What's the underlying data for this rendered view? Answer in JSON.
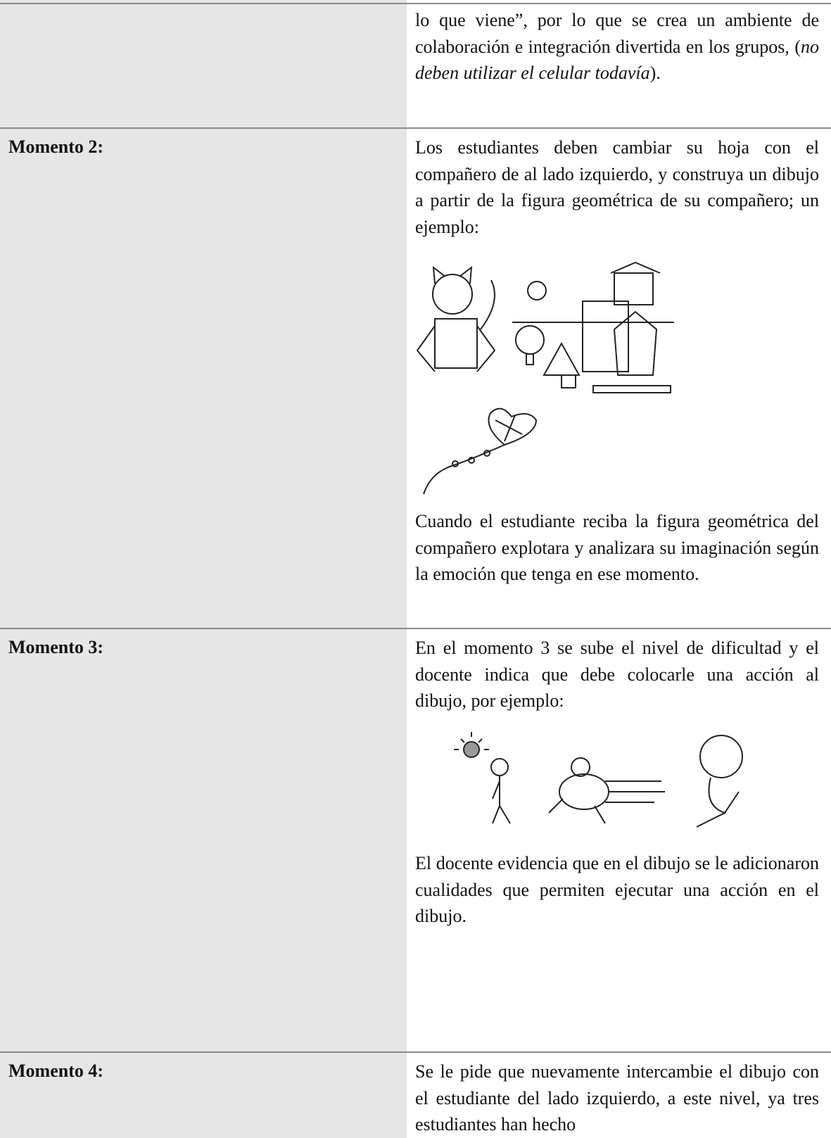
{
  "table": {
    "rows": [
      {
        "paragraphs": [
          [
            {
              "text": "lo que viene”, por lo que se crea un ambiente de colaboración e integración divertida en los grupos, ("
            },
            {
              "text": "no deben utilizar el celular todavía",
              "style": "italic"
            },
            {
              "text": ")."
            }
          ]
        ]
      },
      {
        "label": "Momento 2:",
        "paragraphs": [
          [
            {
              "text": "Los estudiantes deben cambiar su hoja con el compañero de al lado izquierdo, y construya un dibujo a partir de la figura geométrica de su compañero; un ejemplo:"
            }
          ],
          [
            {
              "text": "Cuando el estudiante reciba la figura geométrica del compañero explotara y analizara su imaginación según la emoción que tenga en ese momento."
            }
          ]
        ]
      },
      {
        "label": "Momento 3:",
        "paragraphs": [
          [
            {
              "text": "En el momento 3 se sube el nivel de dificultad y el docente indica que debe colocarle una acción al dibujo, por ejemplo:"
            }
          ],
          [
            {
              "text": "El docente evidencia que en el dibujo se le adicionaron cualidades que permiten ejecutar una acción en el dibujo."
            }
          ]
        ]
      },
      {
        "label": "Momento 4:",
        "paragraphs": [
          [
            {
              "text": "Se le pide que nuevamente intercambie el dibujo con el estudiante del lado izquierdo, a este nivel, ya tres estudiantes han hecho"
            }
          ]
        ]
      }
    ]
  }
}
